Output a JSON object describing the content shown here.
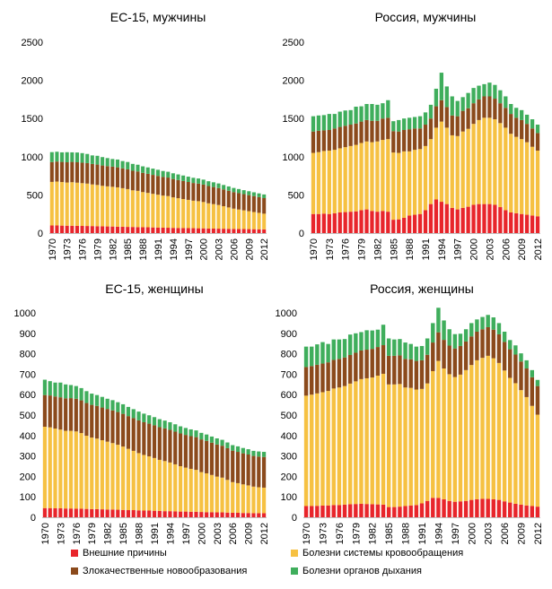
{
  "chart_data": [
    {
      "type": "bar",
      "stacked": true,
      "title": "ЕС-15, мужчины",
      "ylim": [
        0,
        2500
      ],
      "yticks": [
        0,
        500,
        1000,
        1500,
        2000,
        2500
      ],
      "x": [
        1970,
        1971,
        1972,
        1973,
        1974,
        1975,
        1976,
        1977,
        1978,
        1979,
        1980,
        1981,
        1982,
        1983,
        1984,
        1985,
        1986,
        1987,
        1988,
        1989,
        1990,
        1991,
        1992,
        1993,
        1994,
        1995,
        1996,
        1997,
        1998,
        1999,
        2000,
        2001,
        2002,
        2003,
        2004,
        2005,
        2006,
        2007,
        2008,
        2009,
        2010,
        2011,
        2012
      ],
      "xtick_labels": [
        "1970",
        "1973",
        "1976",
        "1979",
        "1982",
        "1985",
        "1988",
        "1991",
        "1994",
        "1997",
        "2000",
        "2003",
        "2006",
        "2009",
        "2012"
      ],
      "series": [
        {
          "name": "Внешние причины",
          "values": [
            100,
            100,
            98,
            97,
            96,
            95,
            94,
            93,
            92,
            90,
            89,
            87,
            86,
            84,
            83,
            81,
            80,
            78,
            77,
            76,
            74,
            73,
            71,
            70,
            68,
            67,
            66,
            65,
            64,
            63,
            62,
            60,
            59,
            58,
            57,
            56,
            55,
            54,
            53,
            52,
            51,
            50,
            49
          ]
        },
        {
          "name": "Болезни системы кровообращения",
          "values": [
            570,
            575,
            570,
            565,
            570,
            565,
            560,
            555,
            545,
            540,
            530,
            525,
            520,
            515,
            505,
            495,
            480,
            475,
            460,
            450,
            440,
            430,
            420,
            415,
            400,
            390,
            380,
            370,
            360,
            355,
            345,
            330,
            320,
            310,
            295,
            280,
            265,
            255,
            245,
            235,
            225,
            215,
            205
          ]
        },
        {
          "name": "Злокачественные новообразования",
          "values": [
            260,
            262,
            264,
            265,
            266,
            267,
            268,
            268,
            268,
            267,
            266,
            265,
            264,
            262,
            260,
            258,
            256,
            254,
            252,
            250,
            248,
            246,
            244,
            242,
            240,
            238,
            236,
            234,
            232,
            230,
            228,
            226,
            224,
            222,
            220,
            218,
            216,
            214,
            212,
            210,
            208,
            206,
            204
          ]
        },
        {
          "name": "Болезни органов дыхания",
          "values": [
            130,
            128,
            125,
            132,
            125,
            128,
            125,
            120,
            112,
            115,
            110,
            105,
            100,
            102,
            95,
            97,
            90,
            88,
            85,
            84,
            82,
            80,
            78,
            76,
            75,
            73,
            72,
            70,
            68,
            67,
            65,
            63,
            62,
            60,
            58,
            57,
            55,
            54,
            52,
            51,
            50,
            49,
            48
          ]
        }
      ],
      "colors": [
        "#e8252b",
        "#f6c142",
        "#8b4a1c",
        "#3fae5c"
      ]
    },
    {
      "type": "bar",
      "stacked": true,
      "title": "Россия, мужчины",
      "ylim": [
        0,
        2500
      ],
      "yticks": [
        0,
        500,
        1000,
        1500,
        2000,
        2500
      ],
      "x": [
        1970,
        1971,
        1972,
        1973,
        1974,
        1975,
        1976,
        1977,
        1978,
        1979,
        1980,
        1981,
        1982,
        1983,
        1984,
        1985,
        1986,
        1987,
        1988,
        1989,
        1990,
        1991,
        1992,
        1993,
        1994,
        1995,
        1996,
        1997,
        1998,
        1999,
        2000,
        2001,
        2002,
        2003,
        2004,
        2005,
        2006,
        2007,
        2008,
        2009,
        2010,
        2011,
        2012
      ],
      "xtick_labels": [
        "1970",
        "1973",
        "1976",
        "1979",
        "1982",
        "1985",
        "1988",
        "1991",
        "1994",
        "1997",
        "2000",
        "2003",
        "2006",
        "2009",
        "2012"
      ],
      "series": [
        {
          "name": "Внешние причины",
          "values": [
            250,
            250,
            255,
            250,
            260,
            270,
            275,
            280,
            285,
            300,
            310,
            290,
            280,
            290,
            280,
            175,
            180,
            200,
            230,
            240,
            250,
            300,
            380,
            440,
            410,
            380,
            330,
            310,
            330,
            345,
            370,
            380,
            380,
            380,
            370,
            340,
            300,
            270,
            260,
            250,
            240,
            230,
            220
          ]
        },
        {
          "name": "Болезни системы кровообращения",
          "values": [
            800,
            810,
            820,
            830,
            830,
            840,
            850,
            860,
            870,
            880,
            890,
            900,
            920,
            930,
            950,
            880,
            870,
            870,
            840,
            850,
            850,
            840,
            850,
            940,
            1050,
            1000,
            950,
            960,
            1000,
            1020,
            1060,
            1100,
            1130,
            1130,
            1120,
            1100,
            1080,
            1030,
            1000,
            980,
            950,
            900,
            860
          ]
        },
        {
          "name": "Злокачественные новообразования",
          "values": [
            280,
            280,
            270,
            270,
            280,
            280,
            280,
            280,
            280,
            280,
            280,
            280,
            270,
            280,
            280,
            280,
            280,
            280,
            290,
            280,
            270,
            280,
            270,
            280,
            280,
            270,
            260,
            260,
            270,
            270,
            270,
            270,
            280,
            280,
            270,
            260,
            260,
            260,
            250,
            250,
            240,
            240,
            230
          ]
        },
        {
          "name": "Болезни органов дыхания",
          "values": [
            200,
            200,
            200,
            210,
            190,
            200,
            200,
            190,
            220,
            200,
            210,
            220,
            210,
            200,
            230,
            130,
            150,
            150,
            150,
            150,
            160,
            160,
            180,
            230,
            360,
            270,
            250,
            200,
            180,
            200,
            200,
            180,
            160,
            180,
            180,
            170,
            150,
            130,
            130,
            130,
            120,
            120,
            110
          ]
        }
      ],
      "colors": [
        "#e8252b",
        "#f6c142",
        "#8b4a1c",
        "#3fae5c"
      ]
    },
    {
      "type": "bar",
      "stacked": true,
      "title": "ЕС-15, женщины",
      "ylim": [
        0,
        1000
      ],
      "yticks": [
        0,
        100,
        200,
        300,
        400,
        500,
        600,
        700,
        800,
        900,
        1000
      ],
      "x": [
        1970,
        1971,
        1972,
        1973,
        1974,
        1975,
        1976,
        1977,
        1978,
        1979,
        1980,
        1981,
        1982,
        1983,
        1984,
        1985,
        1986,
        1987,
        1988,
        1989,
        1990,
        1991,
        1992,
        1993,
        1994,
        1995,
        1996,
        1997,
        1998,
        1999,
        2000,
        2001,
        2002,
        2003,
        2004,
        2005,
        2006,
        2007,
        2008,
        2009,
        2010,
        2011,
        2012
      ],
      "xtick_labels": [
        "1970",
        "1973",
        "1976",
        "1979",
        "1982",
        "1985",
        "1988",
        "1991",
        "1994",
        "1997",
        "2000",
        "2003",
        "2006",
        "2009",
        "2012"
      ],
      "series": [
        {
          "name": "Внешние причины",
          "values": [
            45,
            45,
            44,
            44,
            43,
            43,
            42,
            42,
            41,
            40,
            40,
            39,
            38,
            38,
            37,
            36,
            35,
            35,
            34,
            33,
            33,
            32,
            31,
            30,
            30,
            29,
            28,
            28,
            27,
            27,
            26,
            25,
            25,
            24,
            24,
            23,
            22,
            22,
            21,
            21,
            20,
            20,
            20
          ]
        },
        {
          "name": "Болезни системы кровообращения",
          "values": [
            398,
            395,
            390,
            385,
            380,
            380,
            378,
            370,
            358,
            350,
            345,
            338,
            332,
            325,
            318,
            310,
            300,
            290,
            280,
            272,
            265,
            258,
            250,
            245,
            238,
            230,
            222,
            215,
            210,
            205,
            195,
            190,
            182,
            175,
            170,
            160,
            150,
            145,
            140,
            135,
            130,
            127,
            125
          ]
        },
        {
          "name": "Злокачественные новообразования",
          "values": [
            155,
            156,
            157,
            158,
            159,
            160,
            160,
            160,
            160,
            160,
            160,
            160,
            160,
            160,
            160,
            160,
            160,
            160,
            160,
            160,
            160,
            160,
            160,
            160,
            160,
            160,
            160,
            160,
            160,
            160,
            160,
            159,
            158,
            157,
            156,
            155,
            154,
            153,
            152,
            151,
            150,
            150,
            150
          ]
        },
        {
          "name": "Болезни органов дыхания",
          "values": [
            75,
            70,
            68,
            72,
            68,
            64,
            62,
            60,
            58,
            55,
            53,
            52,
            50,
            50,
            48,
            47,
            45,
            44,
            43,
            42,
            41,
            40,
            39,
            38,
            37,
            36,
            35,
            34,
            33,
            33,
            32,
            31,
            30,
            30,
            29,
            28,
            27,
            27,
            26,
            26,
            25,
            25,
            25
          ]
        }
      ],
      "colors": [
        "#e8252b",
        "#f6c142",
        "#8b4a1c",
        "#3fae5c"
      ]
    },
    {
      "type": "bar",
      "stacked": true,
      "title": "Россия, женщины",
      "ylim": [
        0,
        1000
      ],
      "yticks": [
        0,
        100,
        200,
        300,
        400,
        500,
        600,
        700,
        800,
        900,
        1000
      ],
      "x": [
        1970,
        1971,
        1972,
        1973,
        1974,
        1975,
        1976,
        1977,
        1978,
        1979,
        1980,
        1981,
        1982,
        1983,
        1984,
        1985,
        1986,
        1987,
        1988,
        1989,
        1990,
        1991,
        1992,
        1993,
        1994,
        1995,
        1996,
        1997,
        1998,
        1999,
        2000,
        2001,
        2002,
        2003,
        2004,
        2005,
        2006,
        2007,
        2008,
        2009,
        2010,
        2011,
        2012
      ],
      "xtick_labels": [
        "1970",
        "1973",
        "1976",
        "1979",
        "1982",
        "1985",
        "1988",
        "1991",
        "1994",
        "1997",
        "2000",
        "2003",
        "2006",
        "2009",
        "2012"
      ],
      "series": [
        {
          "name": "Внешние причины",
          "values": [
            55,
            55,
            56,
            57,
            58,
            60,
            60,
            62,
            64,
            65,
            66,
            65,
            64,
            63,
            62,
            50,
            50,
            52,
            55,
            58,
            60,
            68,
            80,
            95,
            95,
            88,
            80,
            76,
            78,
            80,
            85,
            88,
            90,
            90,
            88,
            85,
            78,
            72,
            66,
            62,
            58,
            55,
            52
          ]
        },
        {
          "name": "Болезни системы кровообращения",
          "values": [
            540,
            545,
            550,
            555,
            560,
            570,
            575,
            580,
            590,
            600,
            610,
            615,
            620,
            630,
            640,
            600,
            600,
            600,
            580,
            575,
            565,
            560,
            575,
            620,
            670,
            640,
            620,
            610,
            620,
            640,
            660,
            680,
            690,
            700,
            690,
            670,
            640,
            610,
            590,
            560,
            530,
            490,
            450
          ]
        },
        {
          "name": "Злокачественные новообразования",
          "values": [
            140,
            140,
            140,
            140,
            140,
            140,
            140,
            140,
            140,
            140,
            140,
            140,
            140,
            140,
            140,
            140,
            140,
            140,
            140,
            140,
            140,
            140,
            140,
            140,
            140,
            140,
            140,
            140,
            140,
            140,
            140,
            140,
            140,
            140,
            140,
            140,
            140,
            140,
            140,
            140,
            140,
            140,
            140
          ]
        },
        {
          "name": "Болезни органов дыхания",
          "values": [
            100,
            95,
            100,
            105,
            90,
            100,
            95,
            90,
            100,
            95,
            90,
            95,
            90,
            85,
            100,
            85,
            80,
            80,
            80,
            75,
            70,
            70,
            80,
            95,
            120,
            95,
            80,
            70,
            60,
            60,
            65,
            60,
            60,
            60,
            60,
            55,
            50,
            45,
            45,
            40,
            40,
            35,
            30
          ]
        }
      ],
      "colors": [
        "#e8252b",
        "#f6c142",
        "#8b4a1c",
        "#3fae5c"
      ]
    }
  ],
  "legend": [
    {
      "label": "Внешние причины",
      "color": "#e8252b"
    },
    {
      "label": "Болезни системы кровообращения",
      "color": "#f6c142"
    },
    {
      "label": "Злокачественные новообразования",
      "color": "#8b4a1c"
    },
    {
      "label": "Болезни органов дыхания",
      "color": "#3fae5c"
    }
  ]
}
